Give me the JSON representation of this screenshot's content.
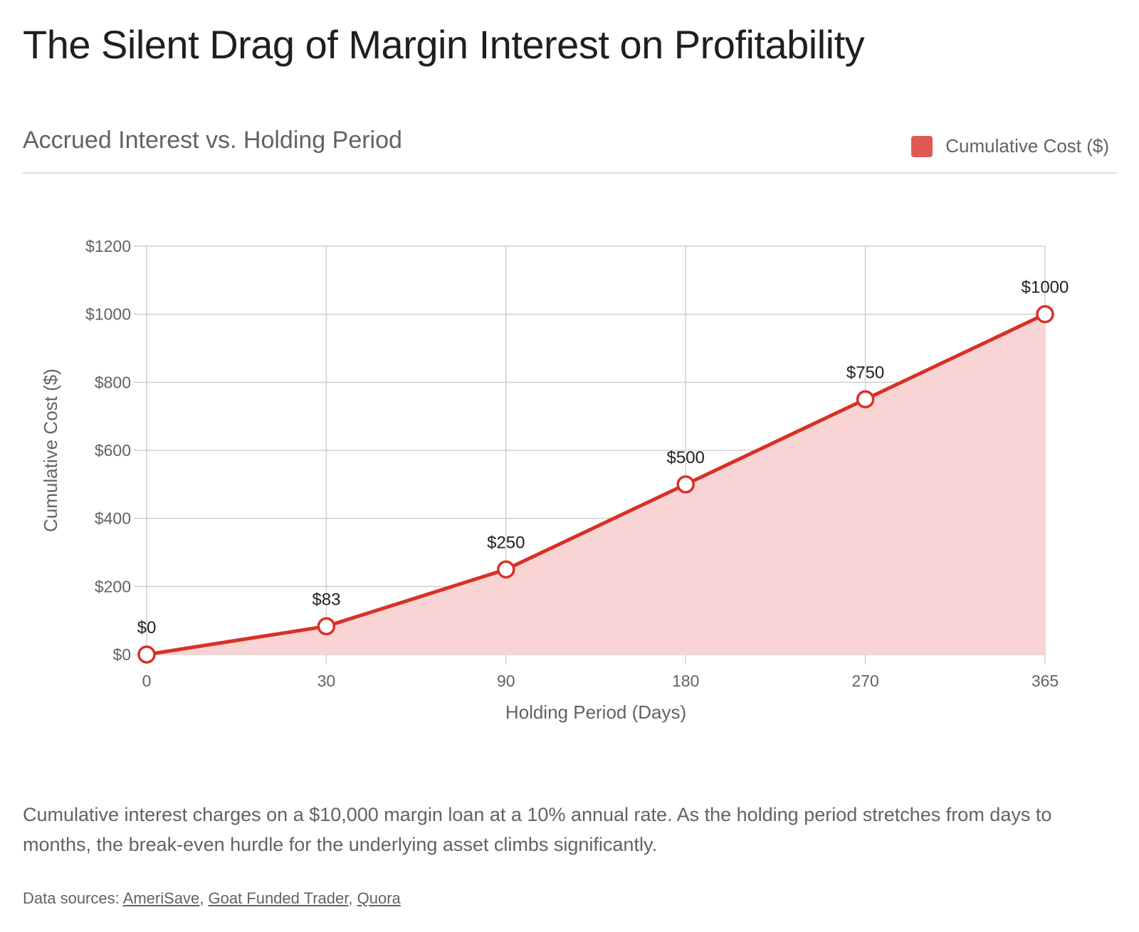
{
  "page": {
    "title": "The Silent Drag of Margin Interest on Profitability",
    "caption": "Cumulative interest charges on a $10,000 margin loan at a 10% annual rate. As the holding period stretches from days to months, the break-even hurdle for the underlying asset climbs significantly.",
    "sources_prefix": "Data sources: ",
    "sources": [
      "AmeriSave",
      "Goat Funded Trader",
      "Quora"
    ]
  },
  "chart_data": {
    "type": "area",
    "title": "Accrued Interest vs. Holding Period",
    "xlabel": "Holding Period (Days)",
    "ylabel": "Cumulative Cost ($)",
    "categories": [
      "0",
      "30",
      "90",
      "180",
      "270",
      "365"
    ],
    "series": [
      {
        "name": "Cumulative Cost ($)",
        "values": [
          0,
          83,
          250,
          500,
          750,
          1000
        ],
        "labels": [
          "$0",
          "$83",
          "$250",
          "$500",
          "$750",
          "$1000"
        ]
      }
    ],
    "ylim": [
      0,
      1200
    ],
    "yticks": [
      0,
      200,
      400,
      600,
      800,
      1000,
      1200
    ],
    "ytick_labels": [
      "$0",
      "$200",
      "$400",
      "$600",
      "$800",
      "$1000",
      "$1200"
    ],
    "grid": true,
    "legend_position": "top-right",
    "colors": {
      "line": "#d93025",
      "fill": "#f8d5d4",
      "legend": "#e05a55"
    }
  }
}
